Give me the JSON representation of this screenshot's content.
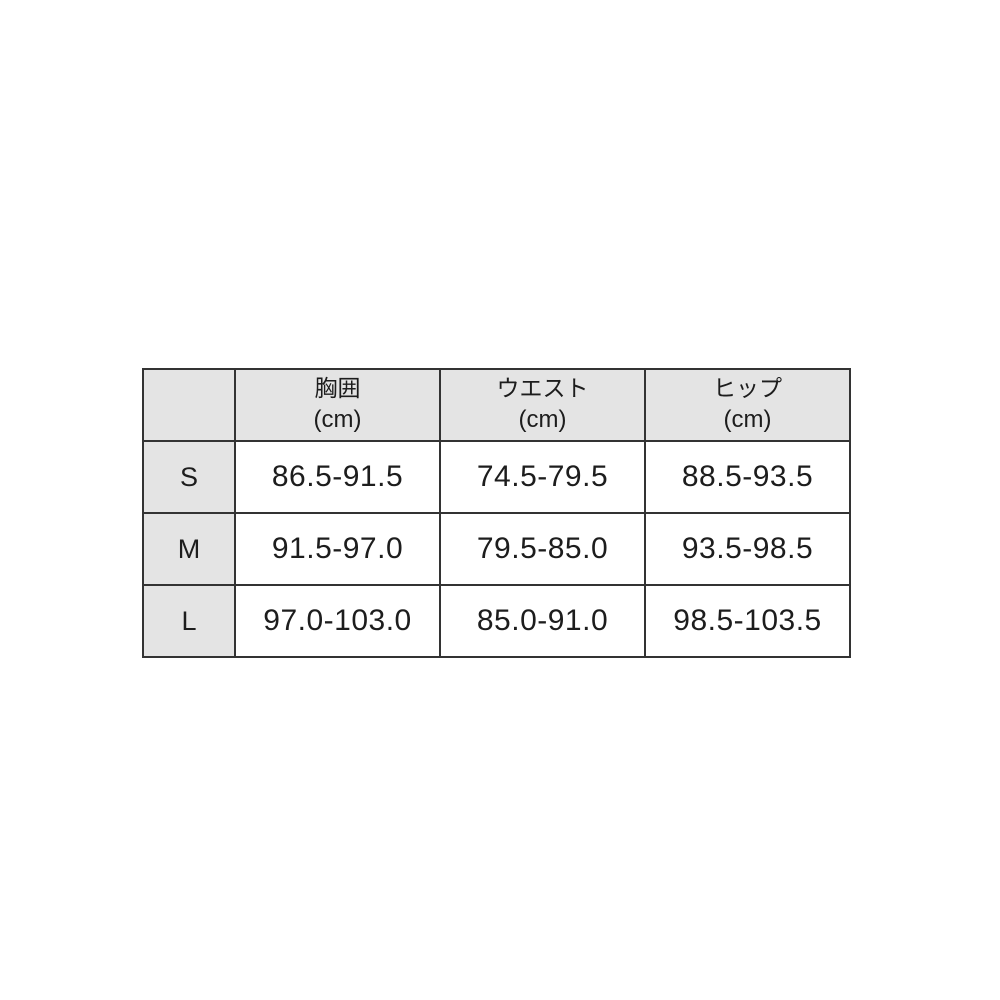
{
  "chart_data": {
    "type": "table",
    "column_headers": [
      {
        "label": "胸囲",
        "unit": "(cm)"
      },
      {
        "label": "ウエスト",
        "unit": "(cm)"
      },
      {
        "label": "ヒップ",
        "unit": "(cm)"
      }
    ],
    "row_headers": [
      "S",
      "M",
      "L"
    ],
    "cells": [
      [
        "86.5-91.5",
        "74.5-79.5",
        "88.5-93.5"
      ],
      [
        "91.5-97.0",
        "79.5-85.0",
        "93.5-98.5"
      ],
      [
        "97.0-103.0",
        "85.0-91.0",
        "98.5-103.5"
      ]
    ],
    "unit_of_measure": "cm"
  },
  "colors": {
    "page_bg": "#ffffff",
    "header_cell_bg": "#e4e4e4",
    "data_cell_bg": "#ffffff",
    "border": "#333333",
    "text": "#1d1d1d"
  }
}
